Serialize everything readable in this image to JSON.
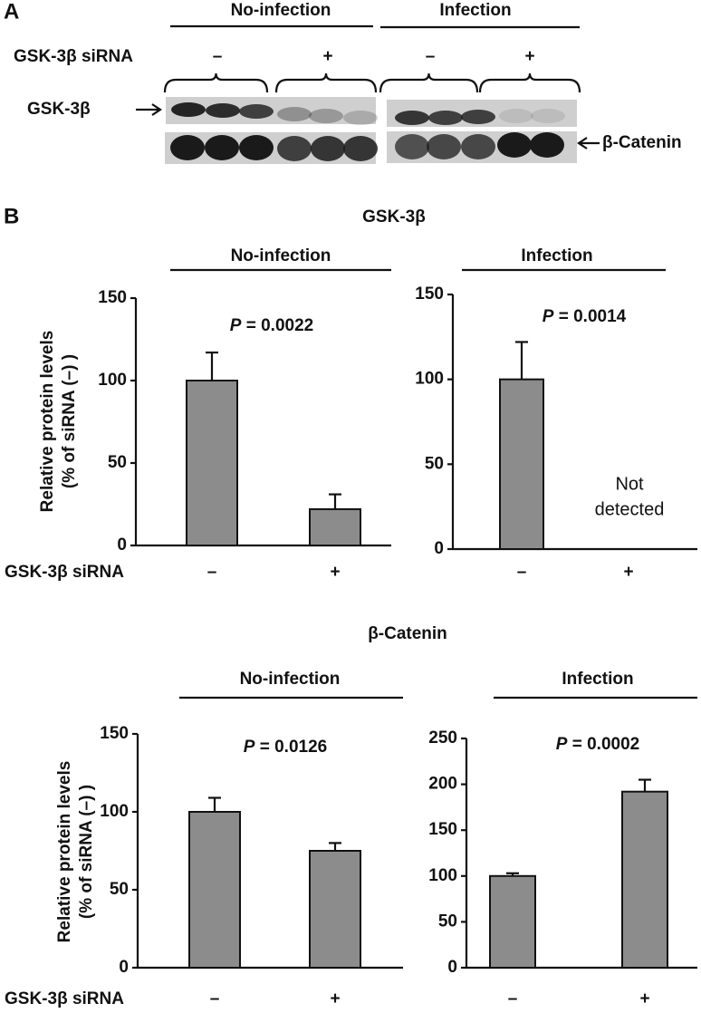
{
  "panel_a": {
    "label": "A",
    "groups": [
      "No-infection",
      "Infection"
    ],
    "row_label": "GSK-3β siRNA",
    "signs": [
      "–",
      "+",
      "–",
      "+"
    ],
    "bands": [
      "GSK-3β",
      "β-Catenin"
    ]
  },
  "panel_b": {
    "label": "B",
    "sections": [
      "GSK-3β",
      "β-Catenin"
    ]
  },
  "chart_data": [
    {
      "type": "bar",
      "title": "No-infection",
      "ylabel": [
        "Relative protein levels",
        "(% of siRNA (–) )"
      ],
      "x_label": "GSK-3β siRNA",
      "categories": [
        "–",
        "+"
      ],
      "values": [
        100,
        22
      ],
      "errors": [
        17,
        9
      ],
      "p_label": "P",
      "p_value": "= 0.0022",
      "ylim": [
        0,
        150
      ],
      "yticks": [
        0,
        50,
        100,
        150
      ],
      "color": "#8c8c8c"
    },
    {
      "type": "bar",
      "title": "Infection",
      "categories": [
        "–",
        "+"
      ],
      "values": [
        100,
        null
      ],
      "errors": [
        22,
        null
      ],
      "p_label": "P",
      "p_value": "= 0.0014",
      "note": [
        "Not",
        "detected"
      ],
      "ylim": [
        0,
        150
      ],
      "yticks": [
        0,
        50,
        100,
        150
      ],
      "color": "#8c8c8c"
    },
    {
      "type": "bar",
      "title": "No-infection",
      "ylabel": [
        "Relative protein levels",
        "(% of siRNA (–) )"
      ],
      "x_label": "GSK-3β siRNA",
      "categories": [
        "–",
        "+"
      ],
      "values": [
        100,
        75
      ],
      "errors": [
        9,
        5
      ],
      "p_label": "P",
      "p_value": "= 0.0126",
      "ylim": [
        0,
        150
      ],
      "yticks": [
        0,
        50,
        100,
        150
      ],
      "color": "#8c8c8c"
    },
    {
      "type": "bar",
      "title": "Infection",
      "categories": [
        "–",
        "+"
      ],
      "values": [
        100,
        192
      ],
      "errors": [
        3,
        13
      ],
      "p_label": "P",
      "p_value": "= 0.0002",
      "ylim": [
        0,
        250
      ],
      "yticks": [
        0,
        50,
        100,
        150,
        200,
        250
      ],
      "color": "#8c8c8c"
    }
  ]
}
